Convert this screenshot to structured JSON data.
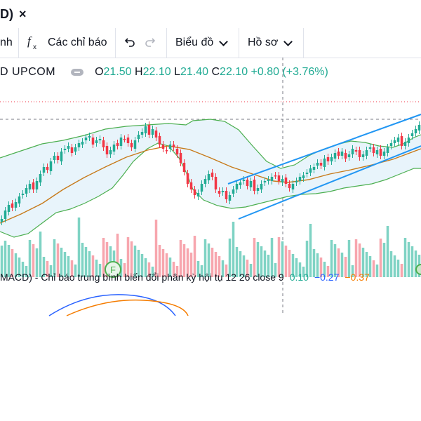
{
  "tab": {
    "title": "D)",
    "close": "×"
  },
  "toolbar": {
    "partial_label": "nh",
    "indicators_icon": "fx-icon",
    "indicators_label": "Các chỉ báo",
    "undo_icon": "undo-icon",
    "redo_icon": "redo-icon",
    "chart_label": "Biểu đồ",
    "profile_label": "Hồ sơ"
  },
  "legend": {
    "symbol": "D  UPCOM",
    "open_label": "O",
    "open": "21.50",
    "high_label": "H",
    "high": "22.10",
    "low_label": "L",
    "low": "21.40",
    "close_label": "C",
    "close": "22.10",
    "change": "+0.80 (+3.76%)"
  },
  "macd": {
    "title": "MACD) - Chỉ báo trung bình biến đổi phân kỳ hội tụ 12 26 close 9",
    "v1": "0.10",
    "v2": "−0.27",
    "v3": "−0.37"
  },
  "event_marker": "F",
  "colors": {
    "up": "#22ab94",
    "down": "#f23645",
    "bb_band": "#4caf50",
    "bb_fill": "#e8f4fb",
    "basis": "#c77a1a",
    "trendline": "#2196f3",
    "macd_line": "#2962ff",
    "signal_line": "#f57c00"
  }
}
